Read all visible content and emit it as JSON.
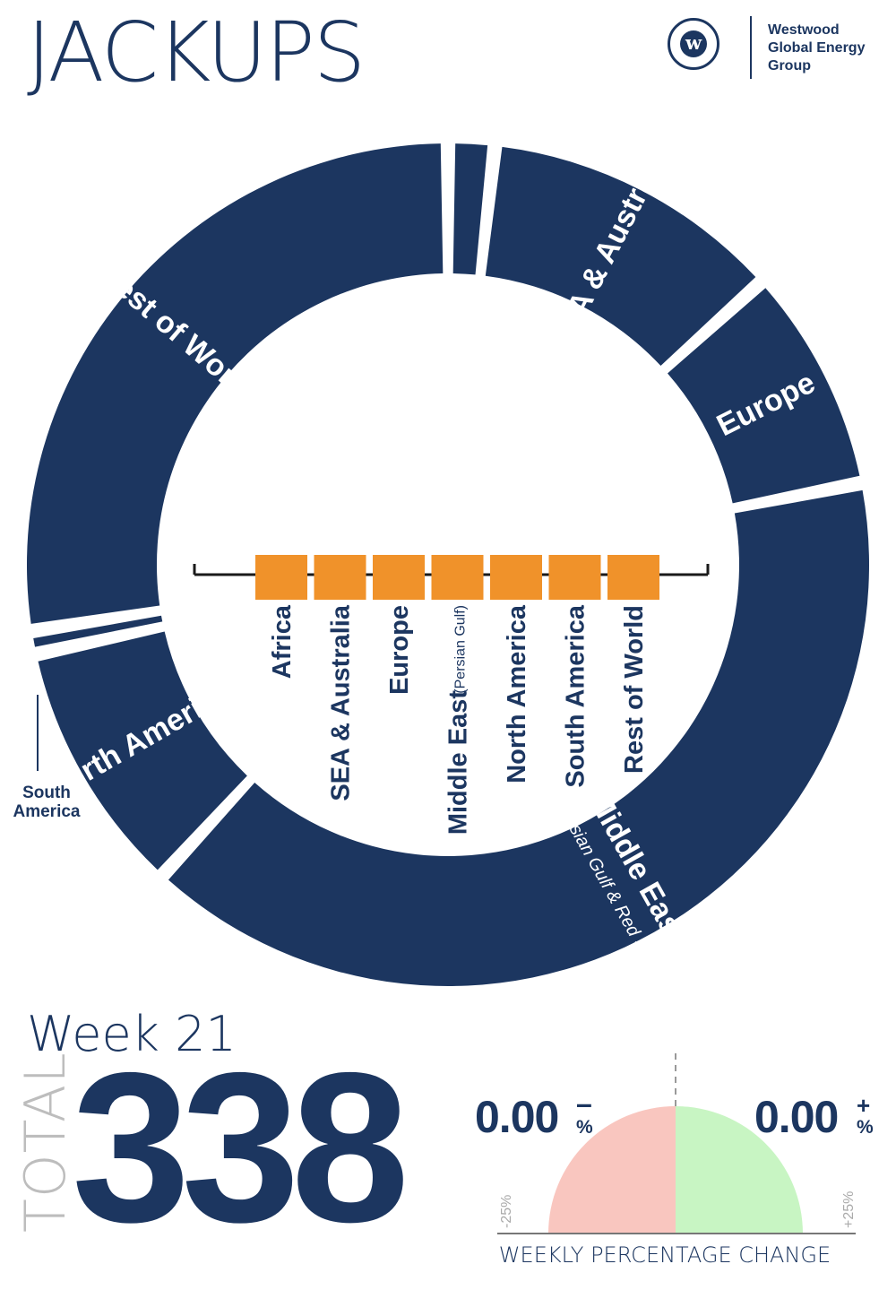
{
  "header": {
    "title": "JACKUPS",
    "logo_glyph": "w",
    "logo_text": "Westwood\nGlobal Energy\nGroup",
    "logo_icon": "westwood-logo-icon"
  },
  "colors": {
    "navy": "#1c3660",
    "orange": "#f0922a",
    "gauge_negative": "#f9c6bf",
    "gauge_positive": "#c8f5c3",
    "muted": "#bdbdbd"
  },
  "chart_data": [
    {
      "type": "donut",
      "title": "",
      "segments": [
        {
          "label": "Africa",
          "value": 6
        },
        {
          "label": "SEA & Australia",
          "value": 39
        },
        {
          "label": "Europe",
          "value": 29
        },
        {
          "label": "Middle East",
          "sublabel": "(Persian Gulf & Red Sea)",
          "value": 135
        },
        {
          "label": "North America",
          "value": 33
        },
        {
          "label": "South America",
          "value": 3
        },
        {
          "label": "Rest of World",
          "value": 93
        }
      ],
      "callout_label": "South\nAmerica",
      "legend": [
        {
          "label": "Africa"
        },
        {
          "label": "SEA & Australia"
        },
        {
          "label": "Europe"
        },
        {
          "label": "Middle East",
          "sublabel": "(Persian Gulf)"
        },
        {
          "label": "North America"
        },
        {
          "label": "South America"
        },
        {
          "label": "Rest of World"
        }
      ]
    },
    {
      "type": "gauge",
      "title": "WEEKLY PERCENTAGE CHANGE",
      "negative_value": "0.00",
      "negative_sign": "–",
      "positive_value": "0.00",
      "positive_sign": "+",
      "unit": "%",
      "min_label": "-25%",
      "max_label": "+25%",
      "range": [
        -25,
        25
      ]
    }
  ],
  "summary": {
    "week": "Week 21",
    "total_label": "TOTAL",
    "total_value": "338"
  }
}
